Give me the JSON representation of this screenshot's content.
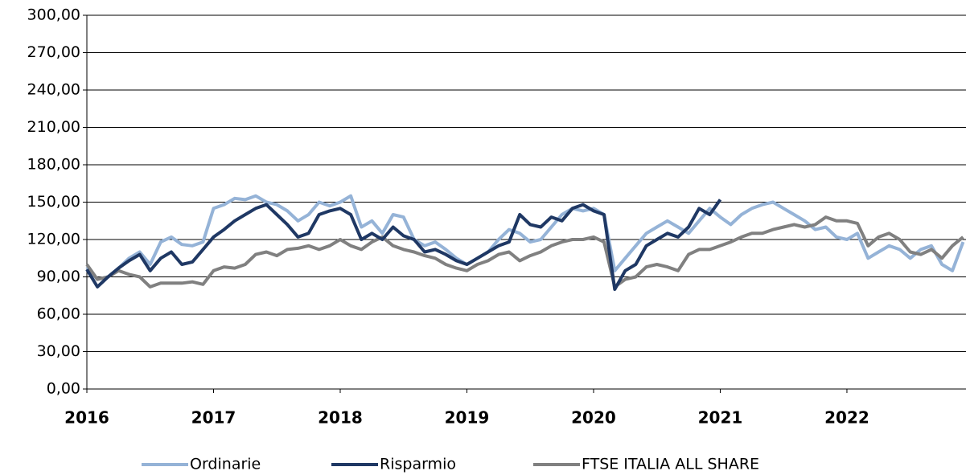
{
  "chart_data": {
    "type": "line",
    "x": [
      2016,
      2016.083,
      2016.167,
      2016.25,
      2016.333,
      2016.417,
      2016.5,
      2016.583,
      2016.667,
      2016.75,
      2016.833,
      2016.917,
      2017,
      2017.083,
      2017.167,
      2017.25,
      2017.333,
      2017.417,
      2017.5,
      2017.583,
      2017.667,
      2017.75,
      2017.833,
      2017.917,
      2018,
      2018.083,
      2018.167,
      2018.25,
      2018.333,
      2018.417,
      2018.5,
      2018.583,
      2018.667,
      2018.75,
      2018.833,
      2018.917,
      2019,
      2019.083,
      2019.167,
      2019.25,
      2019.333,
      2019.417,
      2019.5,
      2019.583,
      2019.667,
      2019.75,
      2019.833,
      2019.917,
      2020,
      2020.083,
      2020.167,
      2020.25,
      2020.333,
      2020.417,
      2020.5,
      2020.583,
      2020.667,
      2020.75,
      2020.833,
      2020.917,
      2021,
      2021.083,
      2021.167,
      2021.25,
      2021.333,
      2021.417,
      2021.5,
      2021.583,
      2021.667,
      2021.75,
      2021.833,
      2021.917,
      2022,
      2022.083,
      2022.167,
      2022.25,
      2022.333,
      2022.417,
      2022.5,
      2022.583,
      2022.667,
      2022.75,
      2022.833,
      2022.917
    ],
    "series": [
      {
        "name": "Ordinarie",
        "color": "#95b3d7",
        "values": [
          98,
          88,
          90,
          97,
          105,
          110,
          100,
          118,
          122,
          116,
          115,
          118,
          145,
          148,
          153,
          152,
          155,
          150,
          148,
          143,
          135,
          140,
          150,
          147,
          150,
          155,
          130,
          135,
          125,
          140,
          138,
          120,
          115,
          118,
          112,
          105,
          100,
          105,
          110,
          120,
          128,
          125,
          118,
          120,
          130,
          140,
          145,
          143,
          145,
          140,
          95,
          105,
          115,
          125,
          130,
          135,
          130,
          125,
          135,
          145,
          138,
          132,
          140,
          145,
          148,
          150,
          145,
          140,
          135,
          128,
          130,
          122,
          120,
          125,
          105,
          110,
          115,
          112,
          105,
          112,
          115,
          100,
          95,
          118
        ]
      },
      {
        "name": "Risparmio",
        "color": "#1f3864",
        "values": [
          96,
          82,
          90,
          97,
          103,
          108,
          95,
          105,
          110,
          100,
          102,
          112,
          122,
          128,
          135,
          140,
          145,
          148,
          140,
          132,
          122,
          125,
          140,
          143,
          145,
          140,
          120,
          125,
          120,
          130,
          123,
          120,
          110,
          112,
          108,
          103,
          100,
          105,
          110,
          115,
          118,
          140,
          132,
          130,
          138,
          135,
          145,
          148,
          143,
          140,
          80,
          95,
          100,
          115,
          120,
          125,
          122,
          130,
          145,
          140,
          152,
          null,
          null,
          null,
          null,
          null,
          null,
          null,
          null,
          null,
          null,
          null,
          null,
          null,
          null,
          null,
          null,
          null,
          null,
          null,
          null,
          null,
          null,
          null
        ]
      },
      {
        "name": "FTSE ITALIA ALL SHARE",
        "color": "#808080",
        "values": [
          100,
          88,
          90,
          95,
          92,
          90,
          82,
          85,
          85,
          85,
          86,
          84,
          95,
          98,
          97,
          100,
          108,
          110,
          107,
          112,
          113,
          115,
          112,
          115,
          120,
          115,
          112,
          118,
          122,
          115,
          112,
          110,
          107,
          105,
          100,
          97,
          95,
          100,
          103,
          108,
          110,
          103,
          107,
          110,
          115,
          118,
          120,
          120,
          122,
          118,
          82,
          88,
          90,
          98,
          100,
          98,
          95,
          108,
          112,
          112,
          115,
          118,
          122,
          125,
          125,
          128,
          130,
          132,
          130,
          132,
          138,
          135,
          135,
          133,
          115,
          122,
          125,
          120,
          110,
          108,
          112,
          105,
          115,
          122
        ]
      }
    ],
    "xlim": [
      2016,
      2022.94
    ],
    "xticks": [
      2016,
      2017,
      2018,
      2019,
      2020,
      2021,
      2022
    ],
    "ylim": [
      0,
      300
    ],
    "yticks": [
      {
        "value": 0,
        "label": "0,00"
      },
      {
        "value": 30,
        "label": "30,00"
      },
      {
        "value": 60,
        "label": "60,00"
      },
      {
        "value": 90,
        "label": "90,00"
      },
      {
        "value": 120,
        "label": "120,00"
      },
      {
        "value": 150,
        "label": "150,00"
      },
      {
        "value": 180,
        "label": "180,00"
      },
      {
        "value": 210,
        "label": "210,00"
      },
      {
        "value": 240,
        "label": "240,00"
      },
      {
        "value": 270,
        "label": "270,00"
      },
      {
        "value": 300,
        "label": "300,00"
      }
    ],
    "grid": true,
    "legend": "bottom"
  }
}
